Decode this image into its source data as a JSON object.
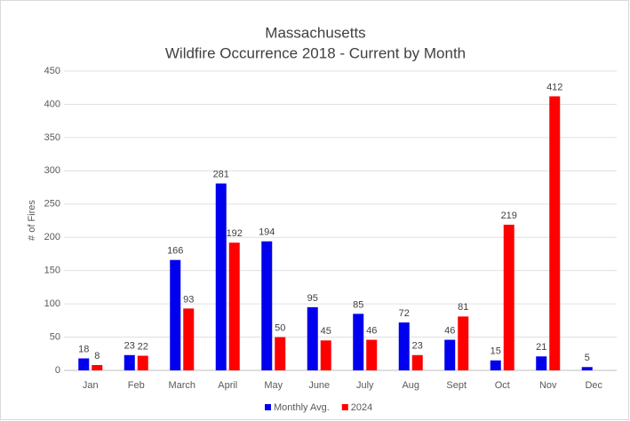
{
  "chart_data": {
    "type": "bar",
    "title": "Massachusetts",
    "subtitle": "Wildfire Occurrence 2018 - Current by Month",
    "y_label": "# of Fires",
    "categories": [
      "Jan",
      "Feb",
      "March",
      "April",
      "May",
      "June",
      "July",
      "Aug",
      "Sept",
      "Oct",
      "Nov",
      "Dec"
    ],
    "series": [
      {
        "name": "Monthly Avg.",
        "color": "#0000ee",
        "values": [
          18,
          23,
          166,
          281,
          194,
          95,
          85,
          72,
          46,
          15,
          21,
          5
        ]
      },
      {
        "name": "2024",
        "color": "#ff0000",
        "values": [
          8,
          22,
          93,
          192,
          50,
          45,
          46,
          23,
          81,
          219,
          412,
          null
        ]
      }
    ],
    "ylim": [
      0,
      450
    ],
    "yticks": [
      0,
      50,
      100,
      150,
      200,
      250,
      300,
      350,
      400,
      450
    ],
    "grid": true,
    "legend": "bottom"
  }
}
